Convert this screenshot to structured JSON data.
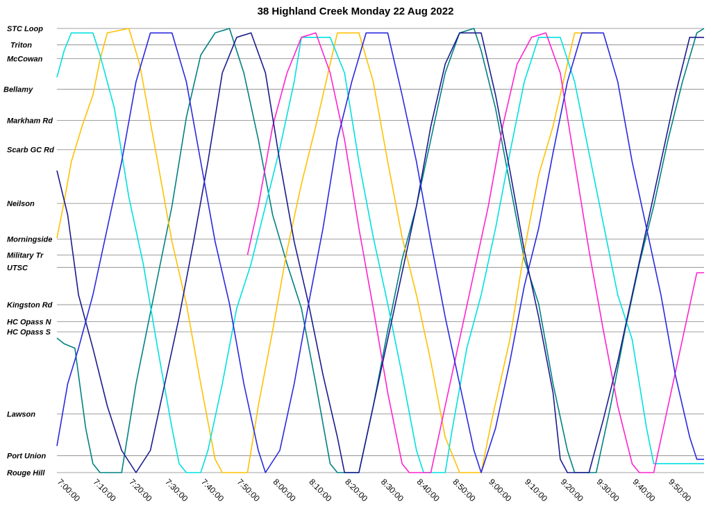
{
  "chart_data": {
    "type": "line",
    "title": "38 Highland Creek Monday 22 Aug 2022",
    "xlabel": "",
    "ylabel": "",
    "grid": true,
    "x_range": [
      "7:00:00",
      "10:00:00"
    ],
    "x_ticks": [
      "7:00:00",
      "7:10:00",
      "7:20:00",
      "7:30:00",
      "7:40:00",
      "7:50:00",
      "8:00:00",
      "8:10:00",
      "8:20:00",
      "8:30:00",
      "8:40:00",
      "8:50:00",
      "9:00:00",
      "9:10:00",
      "9:20:00",
      "9:30:00",
      "9:40:00",
      "9:50:00"
    ],
    "stops": [
      {
        "name": "STC Loop",
        "pos": 0.0
      },
      {
        "name": "Triton",
        "pos": 0.037
      },
      {
        "name": "McCowan",
        "pos": 0.068
      },
      {
        "name": "Bellamy",
        "pos": 0.137
      },
      {
        "name": "Markham Rd",
        "pos": 0.207
      },
      {
        "name": "Scarb GC Rd",
        "pos": 0.273
      },
      {
        "name": "Neilson",
        "pos": 0.394
      },
      {
        "name": "Morningside",
        "pos": 0.474
      },
      {
        "name": "Military Tr",
        "pos": 0.51
      },
      {
        "name": "UTSC",
        "pos": 0.538
      },
      {
        "name": "Kingston Rd",
        "pos": 0.622
      },
      {
        "name": "HC Opass N",
        "pos": 0.66
      },
      {
        "name": "HC Opass S",
        "pos": 0.683
      },
      {
        "name": "Lawson",
        "pos": 0.868
      },
      {
        "name": "Port Union",
        "pos": 0.962
      },
      {
        "name": "Rouge Hill",
        "pos": 1.0
      }
    ],
    "series": [
      {
        "color": "#008080",
        "points": [
          [
            0,
            0.697
          ],
          [
            2,
            0.71
          ],
          [
            5,
            0.72
          ],
          [
            8,
            0.9
          ],
          [
            10,
            0.98
          ],
          [
            12,
            1
          ],
          [
            18,
            1
          ],
          [
            22,
            0.8
          ],
          [
            27,
            0.6
          ],
          [
            32,
            0.4
          ],
          [
            36,
            0.2
          ],
          [
            40,
            0.06
          ],
          [
            44,
            0.01
          ],
          [
            48,
            0
          ],
          [
            52,
            0.1
          ],
          [
            56,
            0.25
          ],
          [
            60,
            0.42
          ],
          [
            64,
            0.53
          ],
          [
            68,
            0.63
          ],
          [
            72,
            0.8
          ],
          [
            76,
            0.98
          ],
          [
            78,
            1
          ],
          [
            84,
            1
          ],
          [
            88,
            0.85
          ],
          [
            92,
            0.68
          ],
          [
            96,
            0.52
          ],
          [
            100,
            0.4
          ],
          [
            104,
            0.25
          ],
          [
            108,
            0.1
          ],
          [
            112,
            0.01
          ],
          [
            116,
            0
          ],
          [
            118,
            0.05
          ],
          [
            122,
            0.18
          ],
          [
            126,
            0.35
          ],
          [
            130,
            0.52
          ],
          [
            134,
            0.62
          ],
          [
            138,
            0.8
          ],
          [
            142,
            0.95
          ],
          [
            144,
            1
          ],
          [
            150,
            1
          ],
          [
            154,
            0.85
          ],
          [
            158,
            0.68
          ],
          [
            162,
            0.53
          ],
          [
            166,
            0.4
          ],
          [
            170,
            0.25
          ],
          [
            174,
            0.12
          ],
          [
            178,
            0.01
          ],
          [
            180,
            0
          ]
        ]
      },
      {
        "color": "#ffc000",
        "points": [
          [
            0,
            0.472
          ],
          [
            2,
            0.39
          ],
          [
            4,
            0.3
          ],
          [
            7,
            0.22
          ],
          [
            10,
            0.15
          ],
          [
            12,
            0.07
          ],
          [
            14,
            0.01
          ],
          [
            20,
            0
          ],
          [
            23,
            0.08
          ],
          [
            28,
            0.3
          ],
          [
            32,
            0.48
          ],
          [
            36,
            0.62
          ],
          [
            40,
            0.8
          ],
          [
            44,
            0.97
          ],
          [
            46,
            1
          ],
          [
            53,
            1
          ],
          [
            56,
            0.85
          ],
          [
            60,
            0.68
          ],
          [
            64,
            0.5
          ],
          [
            68,
            0.35
          ],
          [
            72,
            0.22
          ],
          [
            76,
            0.08
          ],
          [
            78,
            0.01
          ],
          [
            84,
            0.01
          ],
          [
            88,
            0.12
          ],
          [
            92,
            0.3
          ],
          [
            96,
            0.47
          ],
          [
            100,
            0.6
          ],
          [
            104,
            0.75
          ],
          [
            108,
            0.92
          ],
          [
            112,
            1
          ],
          [
            118,
            1
          ],
          [
            121,
            0.88
          ],
          [
            126,
            0.7
          ],
          [
            130,
            0.5
          ],
          [
            134,
            0.33
          ],
          [
            138,
            0.22
          ],
          [
            142,
            0.08
          ],
          [
            144,
            0.01
          ],
          [
            150,
            0.01
          ]
        ]
      },
      {
        "color": "#00e0e0",
        "points": [
          [
            0,
            0.11
          ],
          [
            2,
            0.05
          ],
          [
            4,
            0.01
          ],
          [
            10,
            0.01
          ],
          [
            12,
            0.06
          ],
          [
            16,
            0.18
          ],
          [
            20,
            0.38
          ],
          [
            24,
            0.53
          ],
          [
            28,
            0.72
          ],
          [
            32,
            0.9
          ],
          [
            34,
            0.98
          ],
          [
            36,
            1
          ],
          [
            40,
            1
          ],
          [
            42,
            0.95
          ],
          [
            46,
            0.8
          ],
          [
            50,
            0.63
          ],
          [
            54,
            0.53
          ],
          [
            58,
            0.4
          ],
          [
            62,
            0.27
          ],
          [
            66,
            0.12
          ],
          [
            68,
            0.02
          ],
          [
            76,
            0.02
          ],
          [
            80,
            0.1
          ],
          [
            84,
            0.3
          ],
          [
            88,
            0.47
          ],
          [
            92,
            0.62
          ],
          [
            96,
            0.78
          ],
          [
            100,
            0.95
          ],
          [
            102,
            1
          ],
          [
            108,
            1
          ],
          [
            110,
            0.9
          ],
          [
            114,
            0.72
          ],
          [
            118,
            0.6
          ],
          [
            122,
            0.45
          ],
          [
            126,
            0.28
          ],
          [
            130,
            0.12
          ],
          [
            134,
            0.02
          ],
          [
            140,
            0.02
          ],
          [
            144,
            0.12
          ],
          [
            148,
            0.28
          ],
          [
            152,
            0.44
          ],
          [
            156,
            0.6
          ],
          [
            160,
            0.7
          ],
          [
            164,
            0.9
          ],
          [
            166,
            0.98
          ],
          [
            178,
            0.98
          ],
          [
            180,
            0.98
          ]
        ]
      },
      {
        "color": "#ff22cc",
        "points": [
          [
            53,
            0.51
          ],
          [
            56,
            0.4
          ],
          [
            60,
            0.22
          ],
          [
            64,
            0.1
          ],
          [
            68,
            0.02
          ],
          [
            72,
            0.01
          ],
          [
            76,
            0.1
          ],
          [
            80,
            0.25
          ],
          [
            84,
            0.45
          ],
          [
            88,
            0.63
          ],
          [
            92,
            0.82
          ],
          [
            96,
            0.98
          ],
          [
            98,
            1
          ],
          [
            104,
            1
          ],
          [
            108,
            0.85
          ],
          [
            112,
            0.7
          ],
          [
            116,
            0.55
          ],
          [
            120,
            0.4
          ],
          [
            124,
            0.22
          ],
          [
            128,
            0.08
          ],
          [
            132,
            0.02
          ],
          [
            136,
            0.01
          ],
          [
            140,
            0.1
          ],
          [
            144,
            0.3
          ],
          [
            148,
            0.5
          ],
          [
            152,
            0.68
          ],
          [
            156,
            0.85
          ],
          [
            160,
            0.98
          ],
          [
            162,
            1
          ],
          [
            166,
            1
          ],
          [
            170,
            0.85
          ],
          [
            174,
            0.7
          ],
          [
            178,
            0.55
          ],
          [
            180,
            0.55
          ]
        ]
      },
      {
        "color": "#1a1a8c",
        "points": [
          [
            0,
            0.32
          ],
          [
            3,
            0.42
          ],
          [
            6,
            0.6
          ],
          [
            10,
            0.72
          ],
          [
            14,
            0.85
          ],
          [
            18,
            0.95
          ],
          [
            22,
            1
          ],
          [
            26,
            0.95
          ],
          [
            30,
            0.8
          ],
          [
            34,
            0.65
          ],
          [
            38,
            0.48
          ],
          [
            42,
            0.3
          ],
          [
            46,
            0.1
          ],
          [
            50,
            0.02
          ],
          [
            54,
            0.01
          ],
          [
            58,
            0.1
          ],
          [
            62,
            0.3
          ],
          [
            66,
            0.48
          ],
          [
            70,
            0.62
          ],
          [
            74,
            0.78
          ],
          [
            78,
            0.92
          ],
          [
            80,
            1
          ],
          [
            84,
            1
          ],
          [
            88,
            0.85
          ],
          [
            92,
            0.7
          ],
          [
            96,
            0.55
          ],
          [
            100,
            0.4
          ],
          [
            104,
            0.22
          ],
          [
            108,
            0.08
          ],
          [
            112,
            0.01
          ],
          [
            118,
            0.01
          ],
          [
            122,
            0.15
          ],
          [
            126,
            0.32
          ],
          [
            130,
            0.5
          ],
          [
            134,
            0.65
          ],
          [
            138,
            0.82
          ],
          [
            140,
            0.97
          ],
          [
            142,
            1
          ],
          [
            148,
            1
          ],
          [
            152,
            0.88
          ],
          [
            156,
            0.75
          ],
          [
            160,
            0.6
          ],
          [
            164,
            0.45
          ],
          [
            168,
            0.3
          ],
          [
            172,
            0.15
          ],
          [
            176,
            0.02
          ],
          [
            180,
            0.02
          ]
        ]
      },
      {
        "color": "#2828e0",
        "points": [
          [
            0,
            0.94
          ],
          [
            3,
            0.8
          ],
          [
            6,
            0.72
          ],
          [
            10,
            0.6
          ],
          [
            14,
            0.45
          ],
          [
            18,
            0.3
          ],
          [
            22,
            0.12
          ],
          [
            26,
            0.01
          ],
          [
            32,
            0.01
          ],
          [
            36,
            0.12
          ],
          [
            40,
            0.3
          ],
          [
            44,
            0.48
          ],
          [
            48,
            0.62
          ],
          [
            52,
            0.8
          ],
          [
            56,
            0.95
          ],
          [
            58,
            1
          ],
          [
            62,
            0.95
          ],
          [
            66,
            0.8
          ],
          [
            70,
            0.62
          ],
          [
            74,
            0.45
          ],
          [
            78,
            0.25
          ],
          [
            82,
            0.12
          ],
          [
            86,
            0.01
          ],
          [
            92,
            0.01
          ],
          [
            96,
            0.15
          ],
          [
            100,
            0.3
          ],
          [
            104,
            0.48
          ],
          [
            108,
            0.65
          ],
          [
            112,
            0.8
          ],
          [
            116,
            0.95
          ],
          [
            118,
            1
          ],
          [
            122,
            0.9
          ],
          [
            126,
            0.75
          ],
          [
            130,
            0.58
          ],
          [
            134,
            0.45
          ],
          [
            138,
            0.28
          ],
          [
            142,
            0.12
          ],
          [
            146,
            0.01
          ],
          [
            152,
            0.01
          ],
          [
            156,
            0.12
          ],
          [
            160,
            0.3
          ],
          [
            164,
            0.45
          ],
          [
            168,
            0.6
          ],
          [
            172,
            0.78
          ],
          [
            176,
            0.92
          ],
          [
            178,
            0.97
          ],
          [
            180,
            0.97
          ]
        ]
      }
    ]
  }
}
